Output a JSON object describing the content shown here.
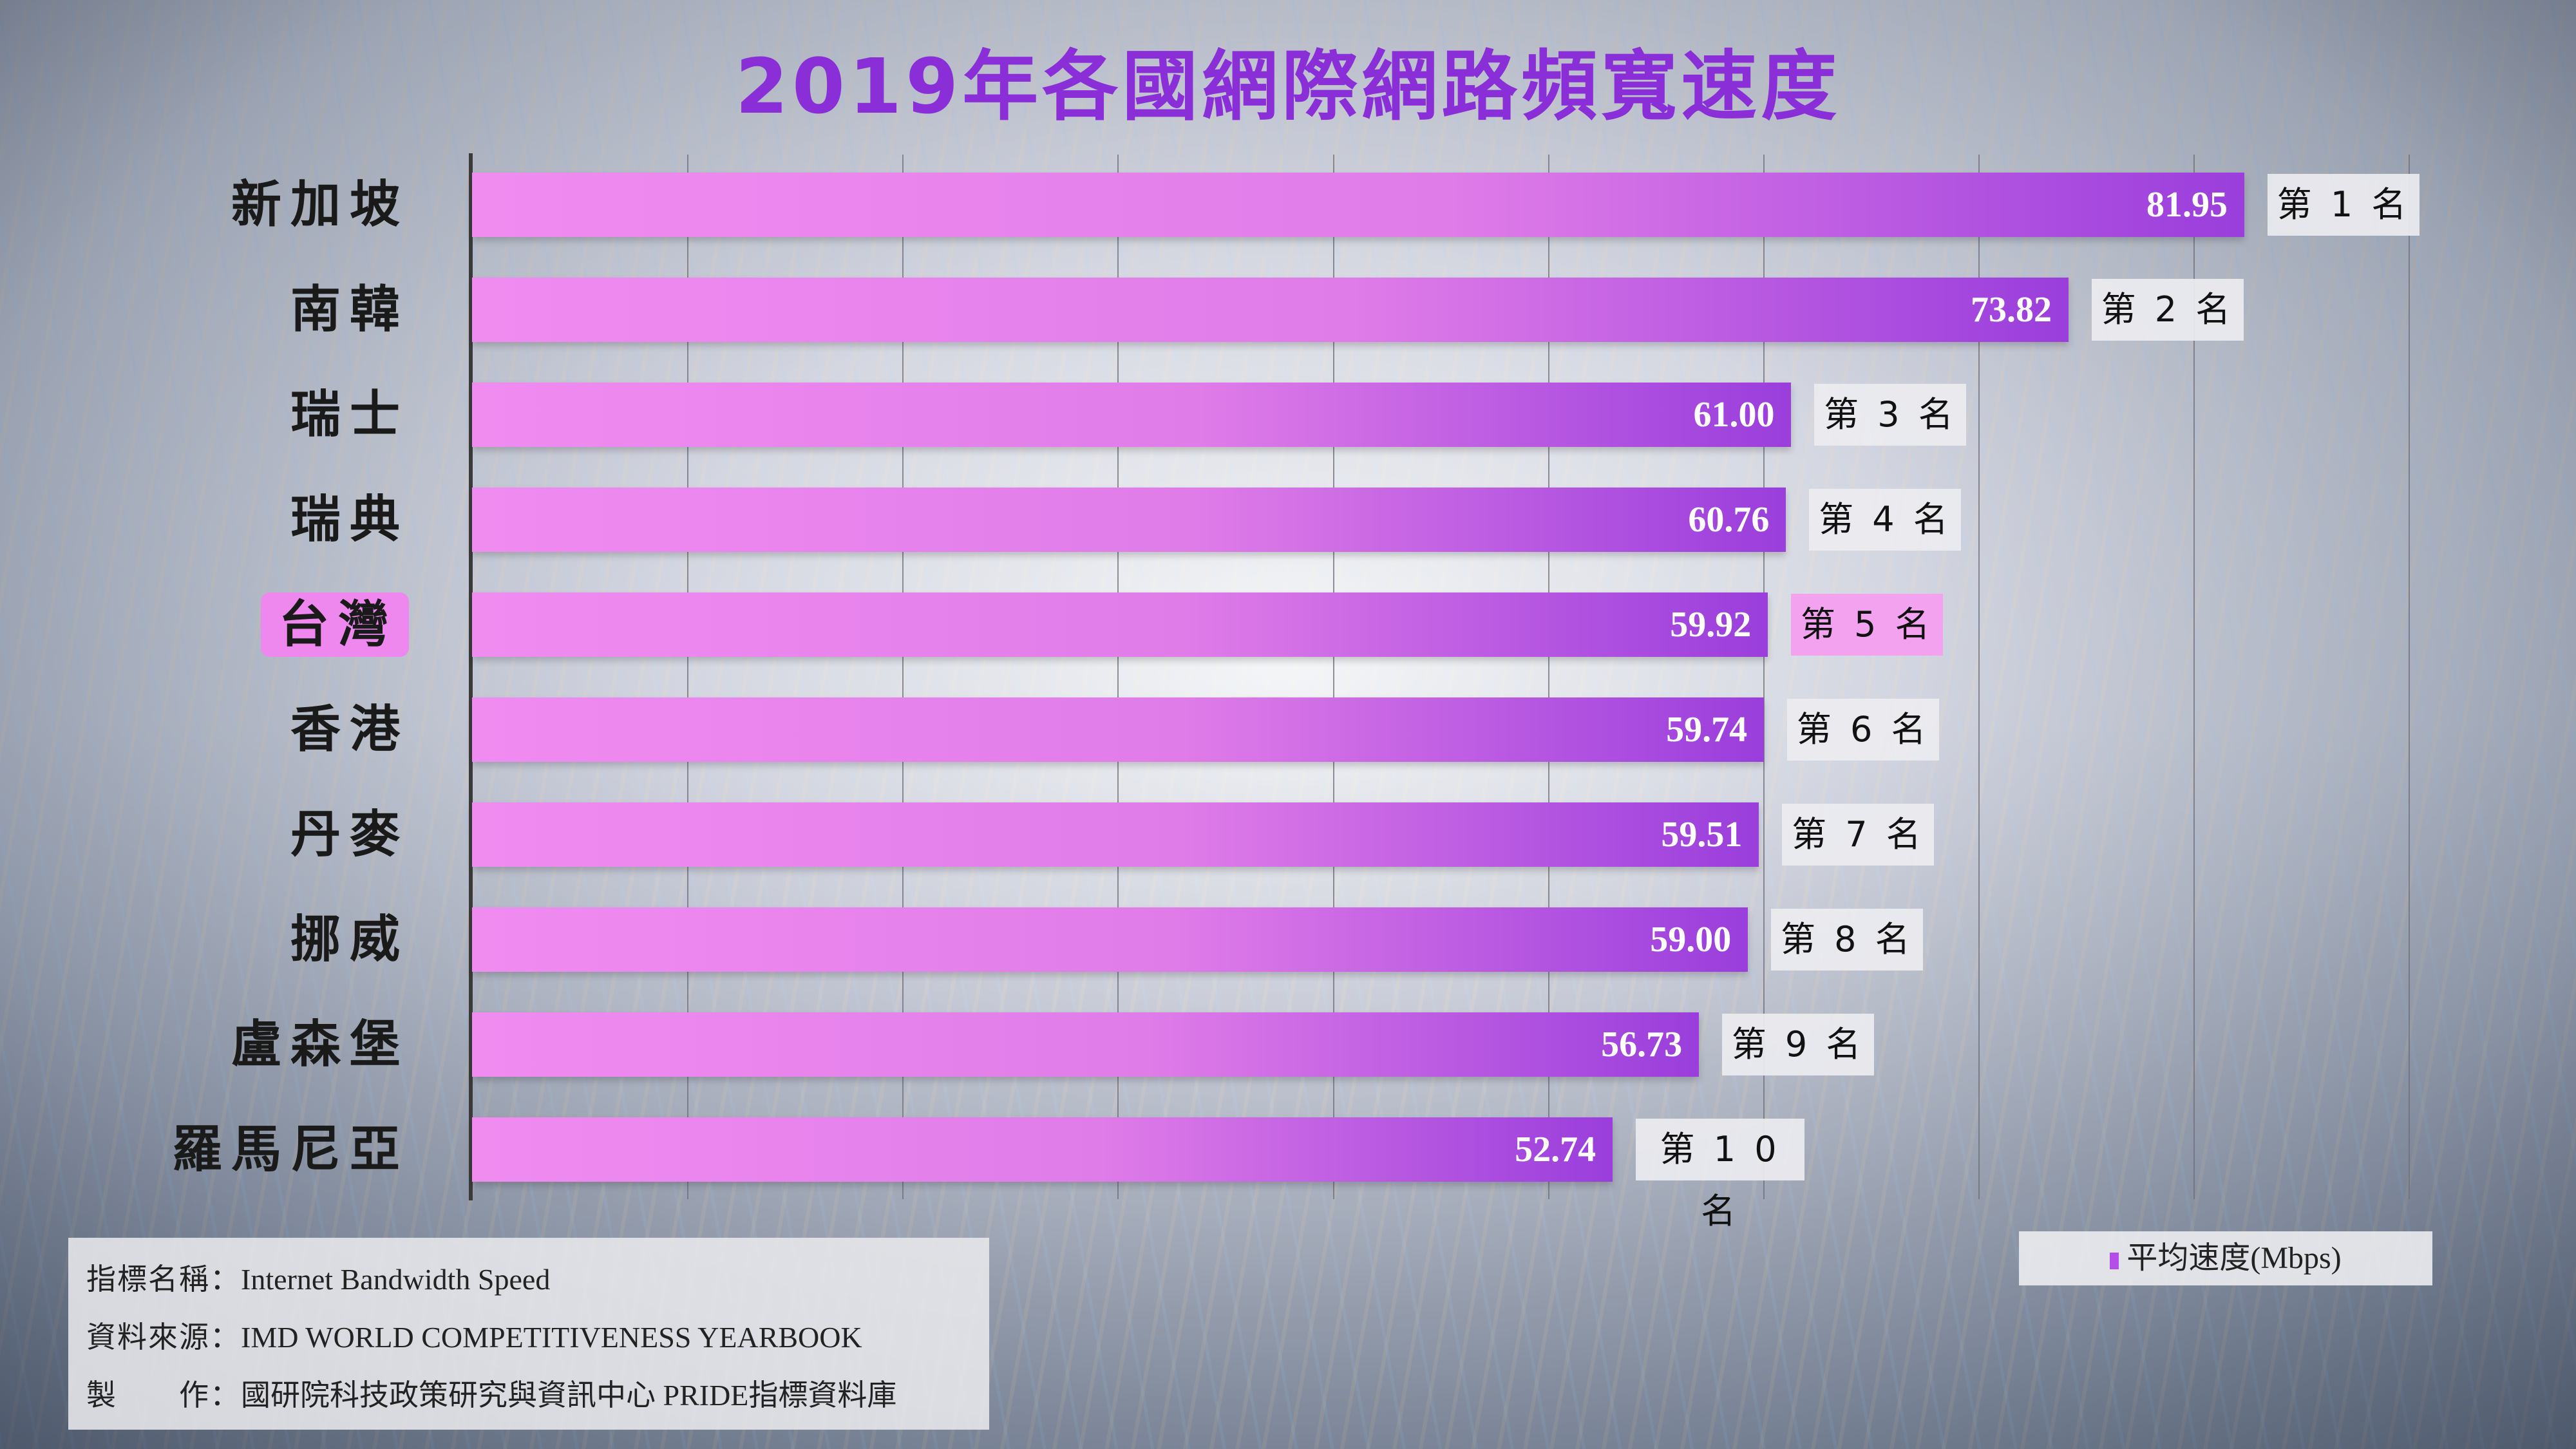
{
  "chart_data": {
    "type": "bar",
    "orientation": "horizontal",
    "title": "2019年各國網際網路頻寬速度",
    "categories": [
      "新加坡",
      "南韓",
      "瑞士",
      "瑞典",
      "台灣",
      "香港",
      "丹麥",
      "挪威",
      "盧森堡",
      "羅馬尼亞"
    ],
    "series": [
      {
        "name": "平均速度(Mbps)",
        "values": [
          81.95,
          73.82,
          61.0,
          60.76,
          59.92,
          59.74,
          59.51,
          59.0,
          56.73,
          52.74
        ]
      }
    ],
    "value_labels": [
      "81.95",
      "73.82",
      "61.00",
      "60.76",
      "59.92",
      "59.74",
      "59.51",
      "59.00",
      "56.73",
      "52.74"
    ],
    "ranks": [
      "第 1 名",
      "第 2 名",
      "第 3 名",
      "第 4 名",
      "第 5 名",
      "第 6 名",
      "第 7 名",
      "第 8 名",
      "第 9 名",
      "第 1 0 名"
    ],
    "highlight": "台灣",
    "xlim": [
      0,
      90
    ],
    "grid": true,
    "legend_position": "bottom-right",
    "colors": {
      "bar_start": "#f08cf0",
      "bar_end": "#9a3edc",
      "highlight": "#ee88ee",
      "title": "#8a2ed8"
    }
  },
  "notes": [
    {
      "label": "指標名稱：",
      "text": "Internet Bandwidth Speed"
    },
    {
      "label": "資料來源：",
      "text": "IMD WORLD COMPETITIVENESS YEARBOOK"
    },
    {
      "label": "製　　作：",
      "text": "國研院科技政策研究與資訊中心 PRIDE指標資料庫"
    }
  ]
}
